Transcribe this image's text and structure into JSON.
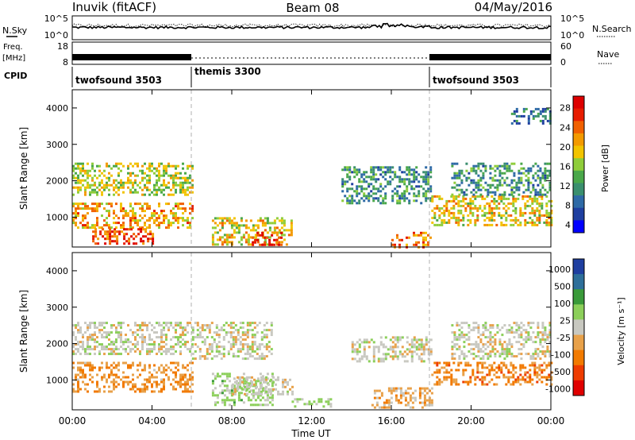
{
  "header": {
    "station": "Inuvik (fitACF)",
    "beam": "Beam 08",
    "date": "04/May/2016"
  },
  "noise_panel": {
    "left_label": "N.Sky",
    "left_ticks": [
      "10^5",
      "10^0"
    ],
    "right_ticks": [
      "10^5",
      "10^0"
    ],
    "right_label": "N.Search"
  },
  "freq_panel": {
    "left_label_1": "Freq.",
    "left_label_2": "[MHz]",
    "left_ticks": [
      "18",
      "8"
    ],
    "right_ticks": [
      "60",
      "0"
    ],
    "right_label": "Nave"
  },
  "cpid": {
    "label": "CPID",
    "segments": [
      {
        "name": "twofsound 3503",
        "start_hour": 0,
        "end_hour": 6
      },
      {
        "name": "themis 3300",
        "start_hour": 6,
        "end_hour": 18
      },
      {
        "name": "twofsound 3503",
        "start_hour": 18,
        "end_hour": 24
      }
    ]
  },
  "colors": {
    "power": [
      "#0000ff",
      "#1f3fa0",
      "#2e6aa6",
      "#3a8f6e",
      "#4aa84a",
      "#8fcd3a",
      "#f2c400",
      "#f39a00",
      "#f16000",
      "#e71c00",
      "#dd0000"
    ],
    "velocity": [
      "#1f3fa0",
      "#2e6f9a",
      "#3a9a3a",
      "#8ccf5a",
      "#c8c8c0",
      "#e8a14a",
      "#f27a00",
      "#ee3c00",
      "#e00000"
    ],
    "gray_guides": "#b0b0b0"
  },
  "chart_data": [
    {
      "type": "heatmap",
      "name": "power",
      "ylabel": "Slant Range [km]",
      "yticks": [
        "1000",
        "2000",
        "3000",
        "4000"
      ],
      "ylim": [
        180,
        4500
      ],
      "xlim": [
        0,
        24
      ],
      "colorbar": {
        "label": "Power [dB]",
        "ticks": [
          "28",
          "24",
          "20",
          "16",
          "12",
          "8",
          "4"
        ],
        "range": [
          0,
          30
        ]
      },
      "regions": [
        {
          "x": [
            0,
            6
          ],
          "y": [
            700,
            1400
          ],
          "value": 20
        },
        {
          "x": [
            0,
            6
          ],
          "y": [
            1600,
            2500
          ],
          "value": 16
        },
        {
          "x": [
            1,
            4
          ],
          "y": [
            300,
            700
          ],
          "value": 24
        },
        {
          "x": [
            7,
            11
          ],
          "y": [
            250,
            1000
          ],
          "value": 18
        },
        {
          "x": [
            9,
            10.5
          ],
          "y": [
            250,
            600
          ],
          "value": 26
        },
        {
          "x": [
            13.5,
            18
          ],
          "y": [
            1400,
            2400
          ],
          "value": 10
        },
        {
          "x": [
            16,
            18
          ],
          "y": [
            200,
            600
          ],
          "value": 22
        },
        {
          "x": [
            18,
            24
          ],
          "y": [
            800,
            1600
          ],
          "value": 18
        },
        {
          "x": [
            19,
            24
          ],
          "y": [
            1600,
            2500
          ],
          "value": 10
        },
        {
          "x": [
            22,
            24
          ],
          "y": [
            3600,
            4000
          ],
          "value": 8
        }
      ]
    },
    {
      "type": "heatmap",
      "name": "velocity",
      "ylabel": "Slant Range [km]",
      "yticks": [
        "1000",
        "2000",
        "3000",
        "4000"
      ],
      "ylim": [
        180,
        4500
      ],
      "xlim": [
        0,
        24
      ],
      "xlabel": "Time UT",
      "xticks": [
        "00:00",
        "04:00",
        "08:00",
        "12:00",
        "16:00",
        "20:00",
        "00:00"
      ],
      "colorbar": {
        "label": "Velocity [m s⁻¹]",
        "ticks": [
          "1000",
          "500",
          "100",
          "25",
          "-25",
          "-100",
          "-500",
          "-1000"
        ],
        "range": [
          -1000,
          1000
        ]
      },
      "regions": [
        {
          "x": [
            0,
            6
          ],
          "y": [
            700,
            1500
          ],
          "value": -300
        },
        {
          "x": [
            0,
            6
          ],
          "y": [
            1700,
            2600
          ],
          "value": 0
        },
        {
          "x": [
            6,
            10
          ],
          "y": [
            1600,
            2600
          ],
          "value": 0
        },
        {
          "x": [
            7,
            10
          ],
          "y": [
            300,
            1200
          ],
          "value": 150
        },
        {
          "x": [
            8,
            11
          ],
          "y": [
            600,
            1100
          ],
          "value": 0
        },
        {
          "x": [
            11,
            13
          ],
          "y": [
            250,
            500
          ],
          "value": 200
        },
        {
          "x": [
            14,
            18
          ],
          "y": [
            1500,
            2200
          ],
          "value": 0
        },
        {
          "x": [
            15,
            18
          ],
          "y": [
            250,
            800
          ],
          "value": -200
        },
        {
          "x": [
            18,
            24
          ],
          "y": [
            900,
            1500
          ],
          "value": -400
        },
        {
          "x": [
            19,
            24
          ],
          "y": [
            1600,
            2600
          ],
          "value": 0
        }
      ]
    }
  ]
}
